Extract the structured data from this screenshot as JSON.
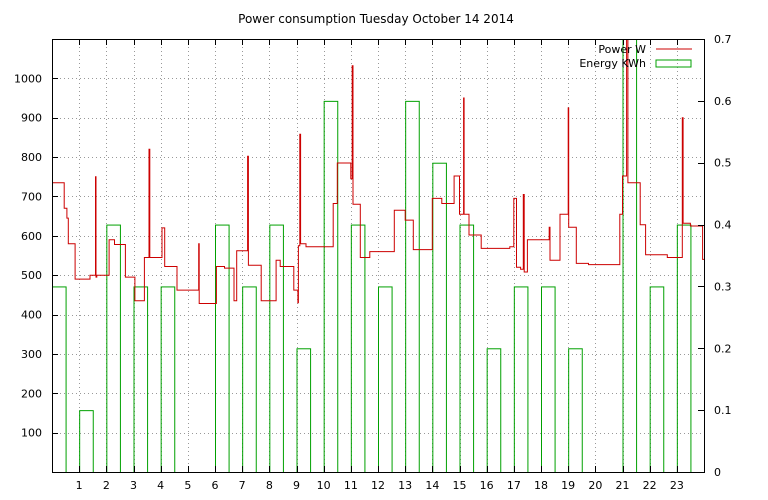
{
  "chart_data": {
    "type": "line",
    "title": "Power consumption Tuesday October 14 2014",
    "xlabel": "",
    "ylabel": "",
    "y2label": "",
    "grid": true,
    "legend_position": "top-right",
    "xlim": [
      0,
      24
    ],
    "ylim": [
      0,
      1100
    ],
    "y2lim": [
      0,
      0.7
    ],
    "x_ticks": [
      1,
      2,
      3,
      4,
      5,
      6,
      7,
      8,
      9,
      10,
      11,
      12,
      13,
      14,
      15,
      16,
      17,
      18,
      19,
      20,
      21,
      22,
      23
    ],
    "y_ticks": [
      100,
      200,
      300,
      400,
      500,
      600,
      700,
      800,
      900,
      1000
    ],
    "y2_ticks": [
      0,
      0.1,
      0.2,
      0.3,
      0.4,
      0.5,
      0.6,
      0.7
    ],
    "colors": {
      "power": "#cc0000",
      "energy": "#00a000",
      "grid": "#999999"
    },
    "series": [
      {
        "name": "Power W",
        "axis": "left",
        "style": "line",
        "points": [
          [
            0.0,
            735
          ],
          [
            0.45,
            735
          ],
          [
            0.45,
            670
          ],
          [
            0.55,
            670
          ],
          [
            0.55,
            645
          ],
          [
            0.6,
            645
          ],
          [
            0.6,
            580
          ],
          [
            0.85,
            580
          ],
          [
            0.85,
            490
          ],
          [
            1.4,
            490
          ],
          [
            1.4,
            500
          ],
          [
            1.6,
            500
          ],
          [
            1.6,
            750
          ],
          [
            1.62,
            750
          ],
          [
            1.62,
            495
          ],
          [
            1.65,
            495
          ],
          [
            1.65,
            500
          ],
          [
            2.1,
            500
          ],
          [
            2.1,
            590
          ],
          [
            2.3,
            590
          ],
          [
            2.3,
            578
          ],
          [
            2.7,
            578
          ],
          [
            2.7,
            495
          ],
          [
            3.05,
            495
          ],
          [
            3.05,
            435
          ],
          [
            3.4,
            435
          ],
          [
            3.4,
            545
          ],
          [
            3.57,
            545
          ],
          [
            3.57,
            820
          ],
          [
            3.6,
            820
          ],
          [
            3.6,
            545
          ],
          [
            4.05,
            545
          ],
          [
            4.05,
            620
          ],
          [
            4.15,
            620
          ],
          [
            4.15,
            522
          ],
          [
            4.6,
            522
          ],
          [
            4.6,
            462
          ],
          [
            5.4,
            462
          ],
          [
            5.4,
            580
          ],
          [
            5.42,
            580
          ],
          [
            5.42,
            428
          ],
          [
            6.05,
            428
          ],
          [
            6.05,
            522
          ],
          [
            6.35,
            522
          ],
          [
            6.35,
            518
          ],
          [
            6.7,
            518
          ],
          [
            6.7,
            435
          ],
          [
            6.8,
            435
          ],
          [
            6.8,
            562
          ],
          [
            7.2,
            562
          ],
          [
            7.2,
            802
          ],
          [
            7.23,
            802
          ],
          [
            7.23,
            525
          ],
          [
            7.7,
            525
          ],
          [
            7.7,
            435
          ],
          [
            8.25,
            435
          ],
          [
            8.25,
            538
          ],
          [
            8.4,
            538
          ],
          [
            8.4,
            522
          ],
          [
            8.9,
            522
          ],
          [
            8.9,
            462
          ],
          [
            9.05,
            462
          ],
          [
            9.05,
            430
          ],
          [
            9.07,
            430
          ],
          [
            9.07,
            575
          ],
          [
            9.12,
            575
          ],
          [
            9.12,
            858
          ],
          [
            9.15,
            858
          ],
          [
            9.15,
            580
          ],
          [
            9.35,
            580
          ],
          [
            9.35,
            572
          ],
          [
            10.35,
            572
          ],
          [
            10.35,
            682
          ],
          [
            10.5,
            682
          ],
          [
            10.5,
            785
          ],
          [
            11.0,
            785
          ],
          [
            11.0,
            745
          ],
          [
            11.05,
            745
          ],
          [
            11.05,
            1032
          ],
          [
            11.08,
            1032
          ],
          [
            11.08,
            680
          ],
          [
            11.35,
            680
          ],
          [
            11.35,
            545
          ],
          [
            11.7,
            545
          ],
          [
            11.7,
            560
          ],
          [
            12.6,
            560
          ],
          [
            12.6,
            665
          ],
          [
            13.0,
            665
          ],
          [
            13.0,
            640
          ],
          [
            13.3,
            640
          ],
          [
            13.3,
            565
          ],
          [
            14.0,
            565
          ],
          [
            14.0,
            695
          ],
          [
            14.35,
            695
          ],
          [
            14.35,
            682
          ],
          [
            14.8,
            682
          ],
          [
            14.8,
            752
          ],
          [
            15.0,
            752
          ],
          [
            15.0,
            655
          ],
          [
            15.15,
            655
          ],
          [
            15.15,
            950
          ],
          [
            15.17,
            950
          ],
          [
            15.17,
            655
          ],
          [
            15.35,
            655
          ],
          [
            15.35,
            602
          ],
          [
            15.8,
            602
          ],
          [
            15.8,
            568
          ],
          [
            16.85,
            568
          ],
          [
            16.85,
            572
          ],
          [
            17.0,
            572
          ],
          [
            17.0,
            695
          ],
          [
            17.1,
            695
          ],
          [
            17.1,
            520
          ],
          [
            17.25,
            520
          ],
          [
            17.25,
            515
          ],
          [
            17.35,
            515
          ],
          [
            17.35,
            705
          ],
          [
            17.38,
            705
          ],
          [
            17.38,
            508
          ],
          [
            17.5,
            508
          ],
          [
            17.5,
            590
          ],
          [
            18.3,
            590
          ],
          [
            18.3,
            622
          ],
          [
            18.33,
            622
          ],
          [
            18.33,
            538
          ],
          [
            18.7,
            538
          ],
          [
            18.7,
            655
          ],
          [
            19.0,
            655
          ],
          [
            19.0,
            925
          ],
          [
            19.02,
            925
          ],
          [
            19.02,
            622
          ],
          [
            19.3,
            622
          ],
          [
            19.3,
            530
          ],
          [
            19.75,
            530
          ],
          [
            19.75,
            527
          ],
          [
            20.9,
            527
          ],
          [
            20.9,
            655
          ],
          [
            21.0,
            655
          ],
          [
            21.0,
            752
          ],
          [
            21.15,
            752
          ],
          [
            21.15,
            1100
          ],
          [
            21.2,
            1100
          ],
          [
            21.2,
            735
          ],
          [
            21.65,
            735
          ],
          [
            21.65,
            628
          ],
          [
            21.85,
            628
          ],
          [
            21.85,
            552
          ],
          [
            22.65,
            552
          ],
          [
            22.65,
            545
          ],
          [
            23.2,
            545
          ],
          [
            23.2,
            900
          ],
          [
            23.23,
            900
          ],
          [
            23.23,
            632
          ],
          [
            23.5,
            632
          ],
          [
            23.5,
            625
          ],
          [
            23.95,
            625
          ],
          [
            23.95,
            540
          ],
          [
            24.0,
            540
          ]
        ]
      },
      {
        "name": "Energy KWh",
        "axis": "right",
        "style": "bars",
        "bar_width": 0.5,
        "x": [
          0,
          1,
          2,
          3,
          4,
          5,
          6,
          7,
          8,
          9,
          10,
          11,
          12,
          13,
          14,
          15,
          16,
          17,
          18,
          19,
          20,
          21,
          22,
          23
        ],
        "values": [
          0.3,
          0.1,
          0.4,
          0.3,
          0.3,
          0.0,
          0.4,
          0.3,
          0.4,
          0.2,
          0.6,
          0.4,
          0.3,
          0.6,
          0.5,
          0.4,
          0.2,
          0.3,
          0.3,
          0.2,
          0.0,
          0.7,
          0.3,
          0.4
        ]
      }
    ]
  }
}
